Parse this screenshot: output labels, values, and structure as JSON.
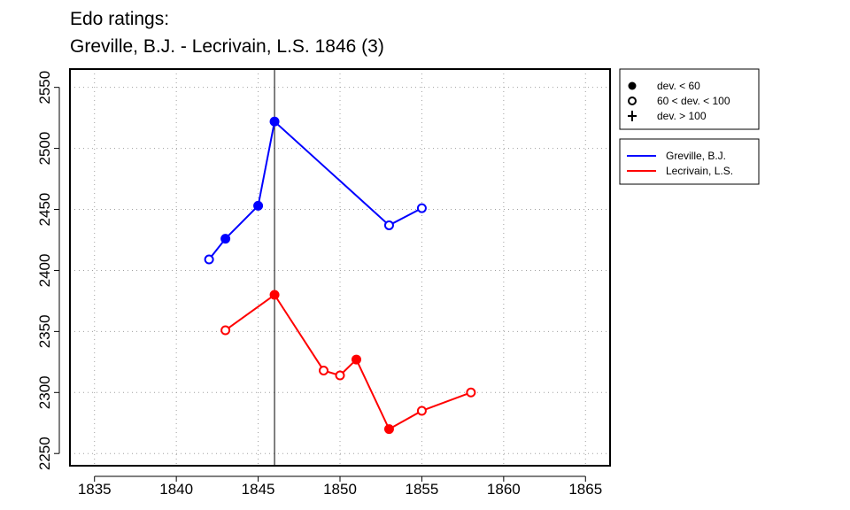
{
  "chart_data": {
    "type": "line",
    "title_lines": [
      "Edo ratings:",
      "Greville, B.J. - Lecrivain, L.S. 1846 (3)"
    ],
    "xlabel": "",
    "ylabel": "",
    "xlim": [
      1833.5,
      1866.5
    ],
    "ylim": [
      2240,
      2565
    ],
    "x_ticks": [
      1835,
      1840,
      1845,
      1850,
      1855,
      1860,
      1865
    ],
    "y_ticks": [
      2250,
      2300,
      2350,
      2400,
      2450,
      2500,
      2550
    ],
    "grid": "dotted",
    "vertical_marker_x": 1846,
    "series": [
      {
        "name": "Greville, B.J.",
        "color": "#0000ff",
        "points": [
          {
            "x": 1842,
            "y": 2409,
            "marker": "open"
          },
          {
            "x": 1843,
            "y": 2426,
            "marker": "filled"
          },
          {
            "x": 1845,
            "y": 2453,
            "marker": "filled"
          },
          {
            "x": 1846,
            "y": 2522,
            "marker": "filled"
          },
          {
            "x": 1853,
            "y": 2437,
            "marker": "open"
          },
          {
            "x": 1855,
            "y": 2451,
            "marker": "open"
          }
        ]
      },
      {
        "name": "Lecrivain, L.S.",
        "color": "#ff0000",
        "points": [
          {
            "x": 1843,
            "y": 2351,
            "marker": "open"
          },
          {
            "x": 1846,
            "y": 2380,
            "marker": "filled"
          },
          {
            "x": 1849,
            "y": 2318,
            "marker": "open"
          },
          {
            "x": 1850,
            "y": 2314,
            "marker": "open"
          },
          {
            "x": 1851,
            "y": 2327,
            "marker": "filled"
          },
          {
            "x": 1853,
            "y": 2270,
            "marker": "filled"
          },
          {
            "x": 1855,
            "y": 2285,
            "marker": "open"
          },
          {
            "x": 1858,
            "y": 2300,
            "marker": "open"
          }
        ]
      }
    ],
    "marker_legend": [
      {
        "symbol": "filled",
        "label": "dev. < 60"
      },
      {
        "symbol": "open",
        "label": "60 < dev. < 100"
      },
      {
        "symbol": "plus",
        "label": "dev. > 100"
      }
    ],
    "legend_position": "right-top"
  }
}
